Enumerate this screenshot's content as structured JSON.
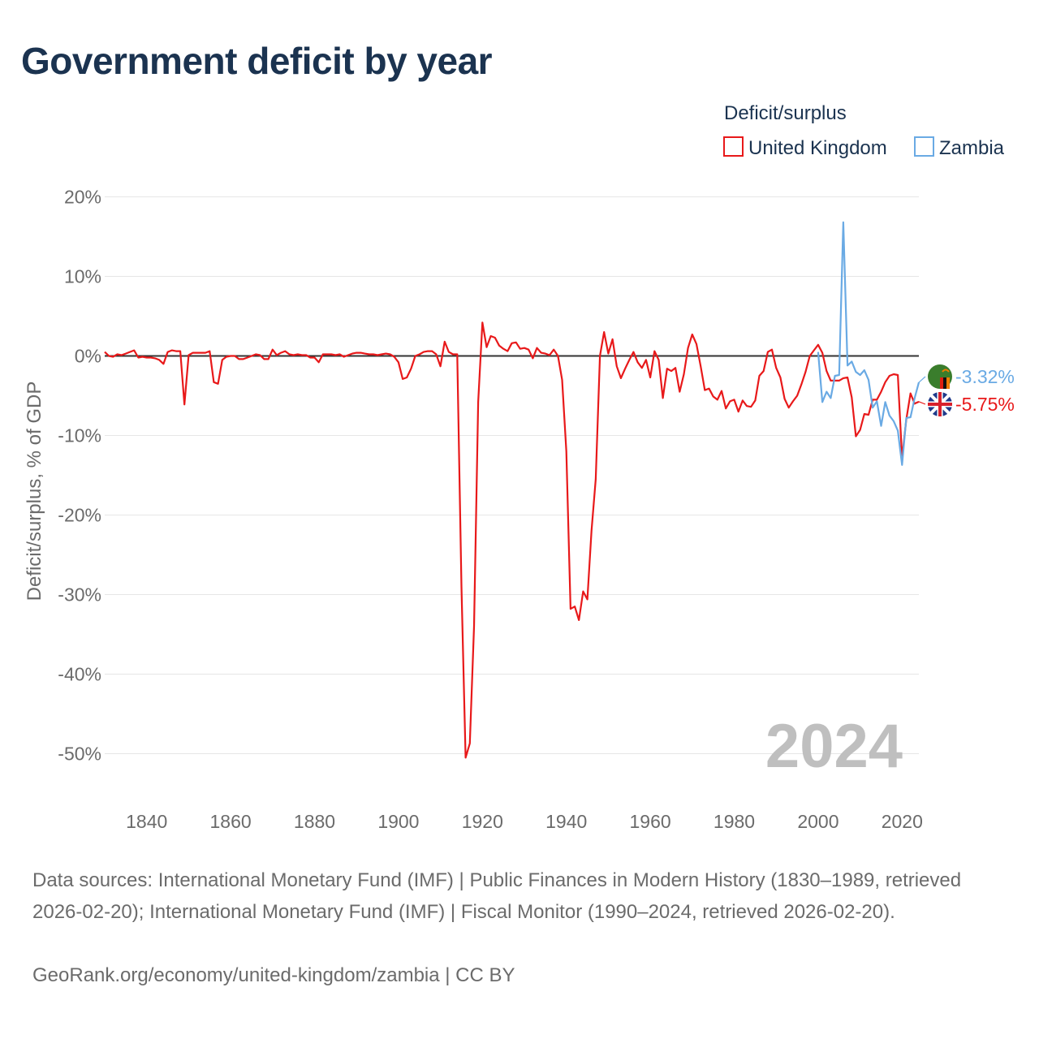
{
  "title": "Government deficit by year",
  "footer": {
    "sources": "Data sources: International Monetary Fund (IMF) | Public Finances in Modern History (1830–1989, retrieved 2026-02-20); International Monetary Fund (IMF) | Fiscal Monitor (1990–2024, retrieved 2026-02-20).",
    "credit": "GeoRank.org/economy/united-kingdom/zambia | CC BY"
  },
  "colors": {
    "uk": "#e8191a",
    "zambia": "#6aaae4",
    "zero_line": "#333333",
    "grid": "#e6e6e6",
    "year_watermark": "#bfbfbf"
  },
  "chart_data": {
    "type": "line",
    "title": "Government deficit by year",
    "ylabel": "Deficit/surplus, % of GDP",
    "xlabel": "",
    "xlim": [
      1830,
      2024
    ],
    "ylim": [
      -55,
      22
    ],
    "x_ticks": [
      1840,
      1860,
      1880,
      1900,
      1920,
      1940,
      1960,
      1980,
      2000,
      2020
    ],
    "y_ticks": [
      20,
      10,
      0,
      -10,
      -20,
      -30,
      -40,
      -50
    ],
    "y_tick_labels": [
      "20%",
      "10%",
      "0%",
      "-10%",
      "-20%",
      "-30%",
      "-40%",
      "-50%"
    ],
    "x_tick_labels": [
      "1840",
      "1860",
      "1880",
      "1900",
      "1920",
      "1940",
      "1960",
      "1980",
      "2000",
      "2020"
    ],
    "legend_title": "Deficit/surplus",
    "legend_position": "top-right",
    "year_label": "2024",
    "series": [
      {
        "name": "United Kingdom",
        "end_label": "-5.75%",
        "points": [
          [
            1830,
            0.5
          ],
          [
            1831,
            0
          ],
          [
            1832,
            -0.1
          ],
          [
            1833,
            0.2
          ],
          [
            1834,
            0.1
          ],
          [
            1835,
            0.3
          ],
          [
            1836,
            0.5
          ],
          [
            1837,
            0.7
          ],
          [
            1838,
            -0.2
          ],
          [
            1839,
            -0.1
          ],
          [
            1840,
            -0.2
          ],
          [
            1841,
            -0.2
          ],
          [
            1842,
            -0.3
          ],
          [
            1843,
            -0.5
          ],
          [
            1844,
            -1
          ],
          [
            1845,
            0.5
          ],
          [
            1846,
            0.7
          ],
          [
            1847,
            0.6
          ],
          [
            1848,
            0.6
          ],
          [
            1849,
            -6.1
          ],
          [
            1850,
            0.1
          ],
          [
            1851,
            0.4
          ],
          [
            1852,
            0.4
          ],
          [
            1853,
            0.4
          ],
          [
            1854,
            0.4
          ],
          [
            1855,
            0.6
          ],
          [
            1856,
            -3.3
          ],
          [
            1857,
            -3.5
          ],
          [
            1858,
            -0.5
          ],
          [
            1859,
            -0.1
          ],
          [
            1860,
            0
          ],
          [
            1861,
            0
          ],
          [
            1862,
            -0.4
          ],
          [
            1863,
            -0.4
          ],
          [
            1864,
            -0.2
          ],
          [
            1865,
            0
          ],
          [
            1866,
            0.2
          ],
          [
            1867,
            0.1
          ],
          [
            1868,
            -0.4
          ],
          [
            1869,
            -0.4
          ],
          [
            1870,
            0.8
          ],
          [
            1871,
            0.1
          ],
          [
            1872,
            0.4
          ],
          [
            1873,
            0.6
          ],
          [
            1874,
            0.2
          ],
          [
            1875,
            0.1
          ],
          [
            1876,
            0.2
          ],
          [
            1877,
            0.1
          ],
          [
            1878,
            0.1
          ],
          [
            1879,
            -0.2
          ],
          [
            1880,
            -0.2
          ],
          [
            1881,
            -0.8
          ],
          [
            1882,
            0.2
          ],
          [
            1883,
            0.2
          ],
          [
            1884,
            0.2
          ],
          [
            1885,
            0.1
          ],
          [
            1886,
            0.2
          ],
          [
            1887,
            -0.1
          ],
          [
            1888,
            0.1
          ],
          [
            1889,
            0.3
          ],
          [
            1890,
            0.4
          ],
          [
            1891,
            0.4
          ],
          [
            1892,
            0.3
          ],
          [
            1893,
            0.2
          ],
          [
            1894,
            0.2
          ],
          [
            1895,
            0.1
          ],
          [
            1896,
            0.2
          ],
          [
            1897,
            0.3
          ],
          [
            1898,
            0.2
          ],
          [
            1899,
            -0.1
          ],
          [
            1900,
            -0.8
          ],
          [
            1901,
            -2.9
          ],
          [
            1902,
            -2.7
          ],
          [
            1903,
            -1.6
          ],
          [
            1904,
            0
          ],
          [
            1905,
            0.2
          ],
          [
            1906,
            0.5
          ],
          [
            1907,
            0.6
          ],
          [
            1908,
            0.6
          ],
          [
            1909,
            0.2
          ],
          [
            1910,
            -1.3
          ],
          [
            1911,
            1.8
          ],
          [
            1912,
            0.5
          ],
          [
            1913,
            0.2
          ],
          [
            1914,
            0.2
          ],
          [
            1915,
            -29
          ],
          [
            1916,
            -50.5
          ],
          [
            1917,
            -48.7
          ],
          [
            1918,
            -34
          ],
          [
            1919,
            -5.8
          ],
          [
            1920,
            4.2
          ],
          [
            1921,
            1.1
          ],
          [
            1922,
            2.5
          ],
          [
            1923,
            2.3
          ],
          [
            1924,
            1.3
          ],
          [
            1925,
            0.9
          ],
          [
            1926,
            0.6
          ],
          [
            1927,
            1.6
          ],
          [
            1928,
            1.7
          ],
          [
            1929,
            0.9
          ],
          [
            1930,
            1
          ],
          [
            1931,
            0.8
          ],
          [
            1932,
            -0.3
          ],
          [
            1933,
            1
          ],
          [
            1934,
            0.4
          ],
          [
            1935,
            0.3
          ],
          [
            1936,
            0.1
          ],
          [
            1937,
            0.8
          ],
          [
            1938,
            0
          ],
          [
            1939,
            -3
          ],
          [
            1940,
            -12
          ],
          [
            1941,
            -31.8
          ],
          [
            1942,
            -31.5
          ],
          [
            1943,
            -33.2
          ],
          [
            1944,
            -29.6
          ],
          [
            1945,
            -30.6
          ],
          [
            1946,
            -22
          ],
          [
            1947,
            -15.5
          ],
          [
            1948,
            0
          ],
          [
            1949,
            3
          ],
          [
            1950,
            0.3
          ],
          [
            1951,
            2.1
          ],
          [
            1952,
            -1.3
          ],
          [
            1953,
            -2.8
          ],
          [
            1954,
            -1.6
          ],
          [
            1955,
            -0.5
          ],
          [
            1956,
            0.5
          ],
          [
            1957,
            -0.8
          ],
          [
            1958,
            -1.5
          ],
          [
            1959,
            -0.5
          ],
          [
            1960,
            -2.7
          ],
          [
            1961,
            0.6
          ],
          [
            1962,
            -0.5
          ],
          [
            1963,
            -5.3
          ],
          [
            1964,
            -1.6
          ],
          [
            1965,
            -1.9
          ],
          [
            1966,
            -1.5
          ],
          [
            1967,
            -4.5
          ],
          [
            1968,
            -2.3
          ],
          [
            1969,
            1
          ],
          [
            1970,
            2.7
          ],
          [
            1971,
            1.5
          ],
          [
            1972,
            -1.3
          ],
          [
            1973,
            -4.3
          ],
          [
            1974,
            -4.1
          ],
          [
            1975,
            -5.1
          ],
          [
            1976,
            -5.5
          ],
          [
            1977,
            -4.4
          ],
          [
            1978,
            -6.6
          ],
          [
            1979,
            -5.7
          ],
          [
            1980,
            -5.5
          ],
          [
            1981,
            -7
          ],
          [
            1982,
            -5.6
          ],
          [
            1983,
            -6.3
          ],
          [
            1984,
            -6.4
          ],
          [
            1985,
            -5.6
          ],
          [
            1986,
            -2.5
          ],
          [
            1987,
            -1.9
          ],
          [
            1988,
            0.5
          ],
          [
            1989,
            0.8
          ],
          [
            1990,
            -1.5
          ],
          [
            1991,
            -2.7
          ],
          [
            1992,
            -5.4
          ],
          [
            1993,
            -6.5
          ],
          [
            1994,
            -5.7
          ],
          [
            1995,
            -5
          ],
          [
            1996,
            -3.6
          ],
          [
            1997,
            -2
          ],
          [
            1998,
            0
          ],
          [
            1999,
            0.7
          ],
          [
            2000,
            1.4
          ],
          [
            2001,
            0.4
          ],
          [
            2002,
            -1.9
          ],
          [
            2003,
            -3.1
          ],
          [
            2004,
            -3.1
          ],
          [
            2005,
            -3.1
          ],
          [
            2006,
            -2.8
          ],
          [
            2007,
            -2.7
          ],
          [
            2008,
            -5.2
          ],
          [
            2009,
            -10.1
          ],
          [
            2010,
            -9.3
          ],
          [
            2011,
            -7.3
          ],
          [
            2012,
            -7.4
          ],
          [
            2013,
            -5.5
          ],
          [
            2014,
            -5.5
          ],
          [
            2015,
            -4.5
          ],
          [
            2016,
            -3.3
          ],
          [
            2017,
            -2.5
          ],
          [
            2018,
            -2.3
          ],
          [
            2019,
            -2.4
          ],
          [
            2020,
            -12.9
          ],
          [
            2021,
            -8
          ],
          [
            2022,
            -4.7
          ],
          [
            2023,
            -6
          ],
          [
            2024,
            -5.75
          ]
        ]
      },
      {
        "name": "Zambia",
        "end_label": "-3.32%",
        "points": [
          [
            2000,
            0.5
          ],
          [
            2001,
            -5.8
          ],
          [
            2002,
            -4.5
          ],
          [
            2003,
            -5.3
          ],
          [
            2004,
            -2.5
          ],
          [
            2005,
            -2.4
          ],
          [
            2006,
            16.8
          ],
          [
            2007,
            -1.2
          ],
          [
            2008,
            -0.7
          ],
          [
            2009,
            -2
          ],
          [
            2010,
            -2.4
          ],
          [
            2011,
            -1.8
          ],
          [
            2012,
            -3
          ],
          [
            2013,
            -6.5
          ],
          [
            2014,
            -5.7
          ],
          [
            2015,
            -8.8
          ],
          [
            2016,
            -5.8
          ],
          [
            2017,
            -7.5
          ],
          [
            2018,
            -8.2
          ],
          [
            2019,
            -9.4
          ],
          [
            2020,
            -13.7
          ],
          [
            2021,
            -7.8
          ],
          [
            2022,
            -7.7
          ],
          [
            2023,
            -5.3
          ],
          [
            2024,
            -3.32
          ]
        ]
      }
    ]
  }
}
